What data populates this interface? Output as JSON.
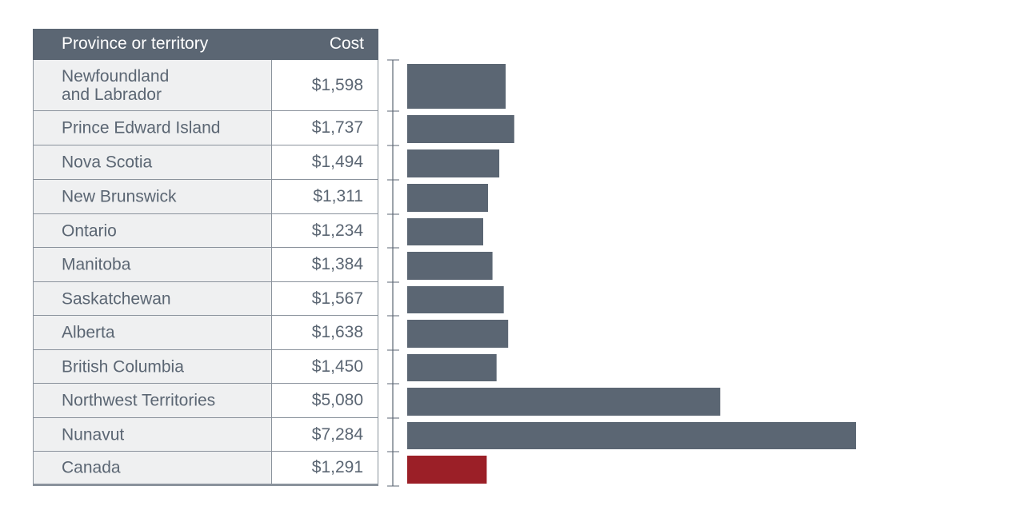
{
  "table": {
    "header": {
      "province": "Province or territory",
      "cost": "Cost"
    },
    "rows": [
      {
        "province": "Newfoundland\nand Labrador",
        "cost": "$1,598"
      },
      {
        "province": "Prince Edward Island",
        "cost": "$1,737"
      },
      {
        "province": "Nova Scotia",
        "cost": "$1,494"
      },
      {
        "province": "New Brunswick",
        "cost": "$1,311"
      },
      {
        "province": "Ontario",
        "cost": "$1,234"
      },
      {
        "province": "Manitoba",
        "cost": "$1,384"
      },
      {
        "province": "Saskatchewan",
        "cost": "$1,567"
      },
      {
        "province": "Alberta",
        "cost": "$1,638"
      },
      {
        "province": "British Columbia",
        "cost": "$1,450"
      },
      {
        "province": "Northwest Territories",
        "cost": "$5,080"
      },
      {
        "province": "Nunavut",
        "cost": "$7,284"
      },
      {
        "province": "Canada",
        "cost": "$1,291"
      }
    ]
  },
  "chart_data": {
    "type": "bar",
    "orientation": "horizontal",
    "categories": [
      "Newfoundland and Labrador",
      "Prince Edward Island",
      "Nova Scotia",
      "New Brunswick",
      "Ontario",
      "Manitoba",
      "Saskatchewan",
      "Alberta",
      "British Columbia",
      "Northwest Territories",
      "Nunavut",
      "Canada"
    ],
    "values": [
      1598,
      1737,
      1494,
      1311,
      1234,
      1384,
      1567,
      1638,
      1450,
      5080,
      7284,
      1291
    ],
    "title": "",
    "xlabel": "",
    "ylabel": "",
    "xlim": [
      0,
      7284
    ],
    "grid": false,
    "legend": "none",
    "bar_color": "#5b6673",
    "highlight_color": "#9b1f27",
    "highlight_category": "Canada"
  }
}
